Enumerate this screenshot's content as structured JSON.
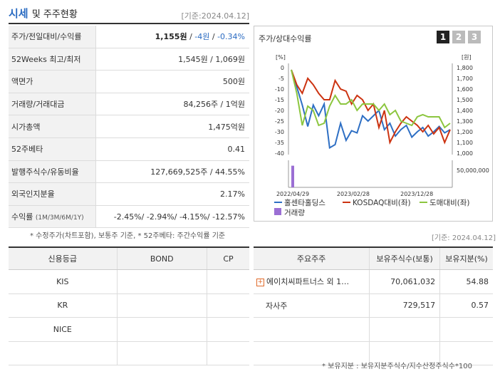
{
  "header": {
    "title_part1": "시세",
    "title_part2": "및 주주현황",
    "date": "[기준:2024.04.12]"
  },
  "quote": [
    {
      "label": "주가/전일대비/수익률",
      "price": "1,155원",
      "change": "-4원",
      "pct": "-0.34%"
    },
    {
      "label": "52Weeks 최고/최저",
      "value": "1,545원 / 1,069원"
    },
    {
      "label": "액면가",
      "value": "500원"
    },
    {
      "label": "거래량/거래대금",
      "value": "84,256주 / 1억원"
    },
    {
      "label": "시가총액",
      "value": "1,475억원"
    },
    {
      "label": "52주베타",
      "value": "0.41"
    },
    {
      "label": "발행주식수/유동비율",
      "value": "127,669,525주 / 44.55%"
    },
    {
      "label": "외국인지분율",
      "value": "2.17%"
    },
    {
      "label": "수익률",
      "label_sub": "(1M/3M/6M/1Y)",
      "value": "-2.45%/ -2.94%/ -4.15%/ -12.57%"
    }
  ],
  "note1": "* 수정주가(차트포함), 보통주 기준, * 52주베타: 주간수익률 기준",
  "chart_panel": {
    "title": "주가/상대수익률",
    "pages": [
      "1",
      "2",
      "3"
    ],
    "left_unit": "[%]",
    "right_unit": "[원]",
    "volume_tick": "50,000,000"
  },
  "chart_data": {
    "type": "line",
    "x_labels": [
      "2022/04/29",
      "2023/02/28",
      "2023/12/28"
    ],
    "left_axis": {
      "ticks": [
        "0",
        "-5",
        "-10",
        "-15",
        "-20",
        "-25",
        "-30",
        "-35",
        "-40"
      ],
      "range": [
        -40,
        0
      ]
    },
    "right_axis": {
      "ticks": [
        "1,800",
        "1,700",
        "1,600",
        "1,500",
        "1,400",
        "1,300",
        "1,200",
        "1,100",
        "1,000"
      ],
      "range": [
        1000,
        1800
      ]
    },
    "series": [
      {
        "name": "홀센타홀딩스",
        "color": "#2e6fc4",
        "axis": "right",
        "values": [
          1780,
          1620,
          1450,
          1250,
          1450,
          1350,
          1460,
          1050,
          1080,
          1280,
          1120,
          1210,
          1190,
          1350,
          1300,
          1350,
          1400,
          1220,
          1280,
          1160,
          1220,
          1260,
          1150,
          1200,
          1240,
          1160,
          1200,
          1250,
          1190,
          1220
        ]
      },
      {
        "name": "KOSDAQ대비(좌)",
        "color": "#cc3311",
        "axis": "left",
        "values": [
          -1,
          -8,
          -12,
          -5,
          -8,
          -12,
          -15,
          -15,
          -6,
          -10,
          -11,
          -17,
          -13,
          -15,
          -20,
          -17,
          -28,
          -20,
          -35,
          -30,
          -26,
          -23,
          -25,
          -27,
          -30,
          -27,
          -31,
          -28,
          -35,
          -29
        ]
      },
      {
        "name": "도매대비(좌)",
        "color": "#8cc63f",
        "axis": "left",
        "values": [
          -1,
          -12,
          -27,
          -18,
          -20,
          -27,
          -26,
          -18,
          -13,
          -17,
          -17,
          -15,
          -20,
          -17,
          -17,
          -17,
          -20,
          -17,
          -22,
          -20,
          -25,
          -26,
          -27,
          -23,
          -22,
          -23,
          -23,
          -23,
          -28,
          -26
        ]
      },
      {
        "name": "거래량",
        "color": "#9b6fd4",
        "axis": "volume",
        "values": [
          80000000
        ]
      }
    ]
  },
  "date2": "[기준: 2024.04.12]",
  "credit_table": {
    "headers": [
      "신용등급",
      "BOND",
      "CP"
    ],
    "rows": [
      [
        "KIS",
        "",
        ""
      ],
      [
        "KR",
        "",
        ""
      ],
      [
        "NICE",
        "",
        ""
      ],
      [
        "",
        "",
        ""
      ]
    ]
  },
  "holder_table": {
    "headers": [
      "주요주주",
      "보유주식수(보통)",
      "보유지분(%)"
    ],
    "rows": [
      {
        "name": "에이치씨파트너스 외 1…",
        "shares": "70,061,032",
        "pct": "54.88"
      },
      {
        "name": "자사주",
        "shares": "729,517",
        "pct": "0.57"
      },
      {
        "name": "",
        "shares": "",
        "pct": ""
      },
      {
        "name": "",
        "shares": "",
        "pct": ""
      }
    ]
  },
  "note2": "* 보유지분 : 보유지분주식수/지수산정주식수*100"
}
